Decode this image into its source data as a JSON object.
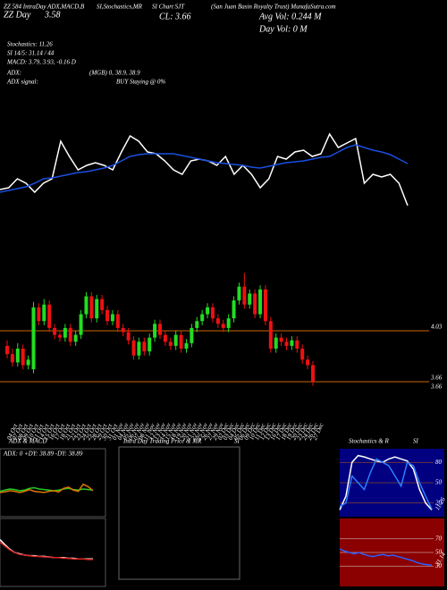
{
  "header": {
    "top_left_1": "ZZ 584 IntraDay ADX,MACD,B",
    "top_left_2": "SI,Stochastics,MR",
    "top_day": "ZZ Day",
    "top_day_value": "3.58",
    "chart_name": "SI Chart SJT",
    "company": "(San Juan Basin Royalty Trust) MunafaSutra.com",
    "close": "CL: 3.66",
    "avg_vol": "Avg Vol: 0.244  M",
    "day_vol": "Day Vol: 0  M",
    "stochastics": "Stochastics: 11.26",
    "rsi": "SI 14/5: 31.14 / 44",
    "macd": "MACD: 3.79, 3.93, -0.16  D",
    "adx": "ADX:",
    "adx_values": "(MGB) 0, 38.9, 38.9",
    "adx_signal": "ADX  signal:",
    "adx_signal_value": "BUY Staying @ 0%",
    "panel_adx_title": "ADX  & MACD",
    "panel_intraday_title": "Intra  Day Trading Price  & MR",
    "panel_intraday_si": "SI",
    "panel_stoch_title": "Stochastics  & R",
    "panel_stoch_si": "SI",
    "adx_panel_label": "ADX: 0  +DY: 38.89  -DY: 38.89"
  },
  "chart_data": [
    {
      "type": "candlestick",
      "categories": [
        "04 Oct",
        "07 Oct",
        "08 Oct",
        "09 Oct",
        "10 Oct",
        "11 Oct",
        "14 Oct",
        "15 Oct",
        "16 Oct",
        "17 Oct",
        "18 Oct",
        "21 Oct",
        "22 Oct",
        "23 Oct",
        "24 Oct",
        "25 Oct",
        "28 Oct",
        "29 Oct",
        "30 Oct",
        "31 Oct",
        "01 Nov",
        "04 Nov",
        "05 Nov",
        "06 Nov",
        "07 Nov",
        "08 Nov",
        "11 Nov",
        "12 Nov",
        "13 Nov",
        "14 Nov",
        "15 Nov",
        "18 Nov",
        "19 Nov",
        "20 Nov",
        "21 Nov",
        "22 Nov",
        "25 Nov",
        "26 Nov",
        "27 Nov",
        "29 Nov",
        "02 Dec",
        "03 Dec",
        "04 Dec",
        "05 Dec",
        "06 Dec",
        "09 Dec",
        "10 Dec",
        "11 Dec",
        "12 Dec",
        "13 Dec",
        "16 Dec",
        "17 Dec",
        "18 Dec",
        "19 Dec",
        "20 Dec",
        "23 Dec",
        "24 Dec",
        "26 Dec",
        "27 Dec"
      ],
      "open": [
        3.92,
        3.86,
        3.8,
        3.9,
        3.78,
        3.75,
        4.2,
        4.1,
        4.22,
        4.05,
        4.0,
        3.98,
        4.05,
        3.95,
        4.0,
        4.15,
        4.28,
        4.12,
        4.26,
        4.18,
        4.1,
        4.15,
        4.05,
        4.02,
        3.96,
        3.85,
        3.95,
        3.88,
        3.98,
        4.08,
        4.0,
        3.95,
        3.92,
        4.0,
        3.9,
        3.94,
        4.05,
        4.1,
        4.15,
        4.2,
        4.12,
        4.08,
        4.05,
        4.12,
        4.25,
        4.35,
        4.22,
        4.3,
        4.15,
        4.33,
        4.1,
        3.9,
        3.98,
        3.95,
        3.92,
        3.96,
        3.9,
        3.82,
        3.78
      ],
      "close": [
        3.86,
        3.8,
        3.9,
        3.78,
        3.82,
        4.2,
        4.1,
        4.22,
        4.05,
        4.0,
        3.98,
        4.05,
        3.95,
        4.0,
        4.15,
        4.28,
        4.12,
        4.26,
        4.18,
        4.1,
        4.15,
        4.05,
        4.02,
        3.96,
        3.85,
        3.95,
        3.88,
        3.98,
        4.08,
        4.0,
        3.95,
        3.92,
        4.0,
        3.9,
        3.94,
        4.05,
        4.1,
        4.15,
        4.2,
        4.12,
        4.08,
        4.05,
        4.12,
        4.25,
        4.35,
        4.22,
        4.3,
        4.15,
        4.33,
        4.1,
        3.9,
        3.98,
        3.95,
        3.92,
        3.96,
        3.9,
        3.82,
        3.78,
        3.66
      ],
      "high": [
        3.96,
        3.9,
        3.94,
        3.93,
        3.85,
        4.24,
        4.23,
        4.26,
        4.25,
        4.08,
        4.03,
        4.08,
        4.08,
        4.03,
        4.18,
        4.31,
        4.31,
        4.29,
        4.29,
        4.21,
        4.18,
        4.18,
        4.08,
        4.05,
        3.99,
        3.98,
        3.98,
        4.01,
        4.11,
        4.11,
        4.03,
        3.98,
        4.03,
        4.03,
        3.97,
        4.08,
        4.13,
        4.18,
        4.23,
        4.23,
        4.15,
        4.11,
        4.15,
        4.28,
        4.38,
        4.45,
        4.33,
        4.33,
        4.36,
        4.36,
        4.13,
        4.01,
        4.01,
        3.98,
        3.99,
        3.99,
        3.93,
        3.85,
        3.81
      ],
      "low": [
        3.83,
        3.77,
        3.77,
        3.75,
        3.75,
        3.72,
        4.07,
        4.07,
        4.02,
        3.97,
        3.95,
        3.95,
        3.92,
        3.92,
        3.97,
        4.12,
        4.09,
        4.09,
        4.15,
        4.07,
        4.07,
        4.02,
        3.99,
        3.93,
        3.82,
        3.82,
        3.85,
        3.85,
        3.95,
        3.97,
        3.92,
        3.89,
        3.89,
        3.87,
        3.87,
        3.91,
        4.02,
        4.07,
        4.12,
        4.09,
        4.05,
        4.02,
        4.02,
        4.09,
        4.22,
        4.19,
        4.19,
        4.12,
        4.12,
        4.07,
        3.87,
        3.87,
        3.92,
        3.89,
        3.89,
        3.87,
        3.79,
        3.75,
        3.63
      ],
      "up_color": "#22dd22",
      "down_color": "#ee1111",
      "ylim": [
        3.6,
        4.5
      ],
      "yticks": [
        4.03,
        3.66
      ],
      "grid": true,
      "grid_color": "#cc6600"
    },
    {
      "type": "line",
      "ylim": [
        0,
        100
      ],
      "series": [
        {
          "color": "#ffffff",
          "values": [
            28,
            30,
            40,
            35,
            25,
            35,
            40,
            82,
            65,
            50,
            55,
            58,
            55,
            50,
            70,
            88,
            82,
            70,
            68,
            60,
            50,
            45,
            60,
            62,
            60,
            55,
            65,
            45,
            55,
            45,
            30,
            40,
            65,
            62,
            70,
            72,
            65,
            68,
            90,
            75,
            80,
            85,
            35,
            45,
            42,
            45,
            35,
            10
          ]
        },
        {
          "color": "#1a4fe0",
          "values": [
            25,
            27,
            29,
            31,
            35,
            40,
            41,
            43,
            45,
            47,
            48,
            50,
            52,
            55,
            60,
            65,
            67,
            68,
            68,
            68,
            68,
            66,
            64,
            62,
            60,
            58,
            57,
            56,
            55,
            53,
            52,
            54,
            56,
            58,
            59,
            60,
            62,
            64,
            65,
            70,
            75,
            78,
            75,
            72,
            70,
            67,
            62,
            57
          ]
        }
      ]
    },
    {
      "type": "line",
      "ylim": [
        0,
        100
      ],
      "series": [
        {
          "color": "#22cc22",
          "values": [
            40,
            42,
            44,
            43,
            41,
            42,
            45,
            46,
            44,
            43,
            42,
            41,
            42,
            44,
            45,
            43,
            42,
            44,
            43,
            42
          ]
        },
        {
          "color": "#dd7700",
          "values": [
            38,
            39,
            41,
            40,
            38,
            40,
            43,
            40,
            39,
            38,
            40,
            41,
            39,
            45,
            47,
            42,
            40,
            52,
            48,
            41
          ]
        }
      ]
    },
    {
      "type": "line",
      "ylim": [
        0,
        100
      ],
      "series": [
        {
          "color": "#ffffff",
          "values": [
            70,
            62,
            55,
            50,
            48,
            46,
            45,
            45,
            44,
            44,
            43,
            42,
            42,
            42,
            41,
            41,
            40,
            40,
            40,
            40
          ]
        },
        {
          "color": "#dd2222",
          "values": [
            66,
            60,
            54,
            50,
            47,
            46,
            45,
            44,
            44,
            43,
            43,
            42,
            42,
            41,
            41,
            40,
            40,
            40,
            39,
            39
          ]
        }
      ]
    },
    {
      "type": "line",
      "ylim": [
        0,
        100
      ],
      "yticks": [
        80,
        50,
        20
      ],
      "grid_color": "#cc6600",
      "series": [
        {
          "color": "#ffffff",
          "values": [
            10,
            30,
            80,
            90,
            88,
            85,
            82,
            80,
            85,
            88,
            85,
            82,
            70,
            40,
            20,
            10
          ]
        },
        {
          "color": "#2a7fff",
          "values": [
            15,
            20,
            60,
            50,
            40,
            65,
            85,
            80,
            75,
            60,
            45,
            80,
            75,
            50,
            30,
            11.26
          ]
        }
      ]
    },
    {
      "type": "line",
      "ylim": [
        0,
        100
      ],
      "yticks": [
        70,
        50,
        30
      ],
      "grid_color": "#dddddd",
      "series": [
        {
          "color": "#2a5fff",
          "values": [
            55,
            52,
            50,
            48,
            50,
            47,
            45,
            44,
            46,
            47,
            45,
            46,
            44,
            42,
            40,
            38,
            35,
            33,
            32,
            31.14
          ]
        }
      ]
    }
  ]
}
